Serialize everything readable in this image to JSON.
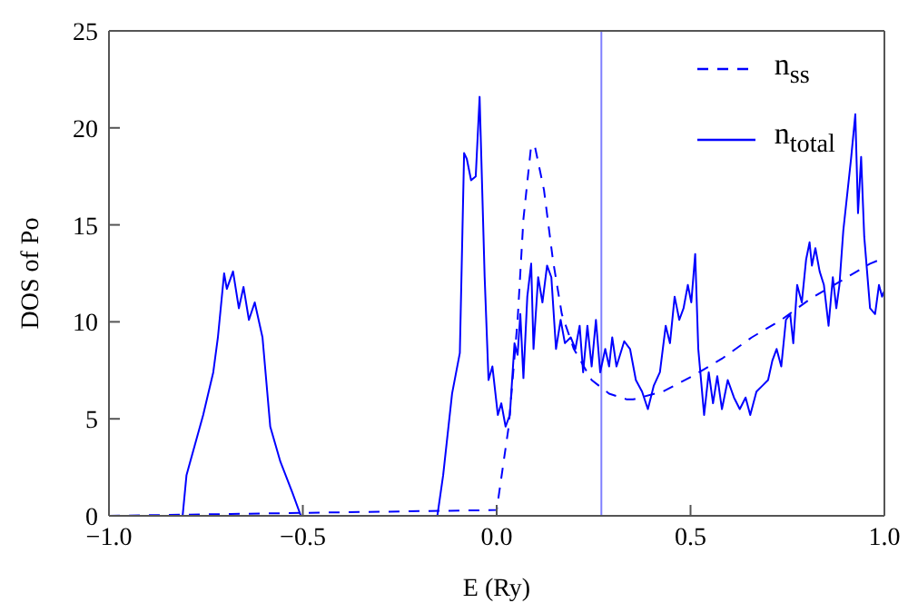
{
  "chart_data": {
    "type": "line",
    "xlabel": "E (Ry)",
    "ylabel": "DOS of Po",
    "xlim": [
      -1,
      1
    ],
    "ylim": [
      0,
      25
    ],
    "xticks": [
      {
        "value": -1,
        "label": "−1.0"
      },
      {
        "value": -0.5,
        "label": "−0.5"
      },
      {
        "value": 0,
        "label": "0.0"
      },
      {
        "value": 0.5,
        "label": "0.5"
      },
      {
        "value": 1,
        "label": "1.0"
      }
    ],
    "yticks": [
      0,
      5,
      10,
      15,
      20,
      25
    ],
    "grid": false,
    "legend": "top right",
    "marker": "none",
    "ref_lines": [
      {
        "axis": "x",
        "value": 0.27,
        "color": "#8080ff"
      }
    ],
    "series": [
      {
        "name": "n$_{ss}$",
        "color": "#0000ff",
        "line_style": "dashed",
        "x": [
          -1,
          0,
          0.031,
          0.054,
          0.069,
          0.089,
          0.099,
          0.122,
          0.145,
          0.168,
          0.199,
          0.245,
          0.29,
          0.336,
          0.352,
          0.428,
          0.505,
          0.581,
          0.658,
          0.734,
          0.81,
          0.887,
          0.963,
          1
        ],
        "values": [
          0,
          0.3,
          4.6,
          10.1,
          15.3,
          19.1,
          19,
          16.8,
          13.2,
          10.4,
          8.6,
          7,
          6.3,
          6,
          6,
          6.4,
          7.2,
          8.1,
          9.2,
          10.1,
          11.2,
          12.1,
          13,
          13.3
        ]
      },
      {
        "name": "n$_{total}$",
        "color": "#0000ff",
        "line_style": "solid",
        "x": [
          -1,
          -0.81,
          -0.8,
          -0.757,
          -0.731,
          -0.719,
          -0.703,
          -0.696,
          -0.68,
          -0.665,
          -0.653,
          -0.639,
          -0.624,
          -0.604,
          -0.584,
          -0.558,
          -0.527,
          -0.505,
          -0.153,
          -0.138,
          -0.115,
          -0.095,
          -0.084,
          -0.077,
          -0.066,
          -0.054,
          -0.044,
          -0.031,
          -0.021,
          -0.011,
          0.003,
          0.012,
          0.023,
          0.034,
          0.046,
          0.054,
          0.061,
          0.069,
          0.079,
          0.089,
          0.095,
          0.107,
          0.118,
          0.13,
          0.141,
          0.153,
          0.165,
          0.176,
          0.191,
          0.203,
          0.214,
          0.223,
          0.234,
          0.245,
          0.256,
          0.267,
          0.28,
          0.29,
          0.298,
          0.309,
          0.329,
          0.344,
          0.359,
          0.375,
          0.39,
          0.405,
          0.421,
          0.436,
          0.447,
          0.459,
          0.471,
          0.482,
          0.493,
          0.502,
          0.512,
          0.52,
          0.535,
          0.547,
          0.558,
          0.569,
          0.581,
          0.596,
          0.612,
          0.627,
          0.642,
          0.654,
          0.67,
          0.685,
          0.7,
          0.711,
          0.722,
          0.734,
          0.746,
          0.757,
          0.765,
          0.775,
          0.787,
          0.798,
          0.807,
          0.813,
          0.822,
          0.833,
          0.844,
          0.856,
          0.867,
          0.876,
          0.884,
          0.894,
          0.914,
          0.925,
          0.932,
          0.94,
          0.948,
          0.963,
          0.976,
          0.986,
          0.994,
          1
        ],
        "values": [
          0,
          0,
          2.1,
          5.2,
          7.4,
          9.2,
          12.5,
          11.7,
          12.6,
          10.7,
          11.8,
          10.1,
          11,
          9.2,
          4.6,
          2.8,
          1.2,
          0,
          0,
          2.1,
          6.3,
          8.4,
          18.7,
          18.4,
          17.3,
          17.5,
          21.6,
          12.3,
          7,
          7.7,
          5.2,
          5.8,
          4.6,
          5.2,
          8.9,
          8.3,
          10.4,
          7.1,
          11.3,
          13,
          8.6,
          12.3,
          11,
          12.9,
          12.3,
          8.6,
          10.1,
          8.9,
          9.2,
          8.6,
          9.8,
          7.4,
          9.8,
          7.7,
          10.1,
          7.4,
          8.6,
          7.7,
          9.2,
          7.7,
          9,
          8.6,
          7,
          6.4,
          5.5,
          6.7,
          7.4,
          9.8,
          8.9,
          11.3,
          10.1,
          10.7,
          11.9,
          11,
          13.5,
          8.6,
          5.2,
          7.4,
          5.8,
          7.2,
          5.5,
          7,
          6.1,
          5.5,
          6.1,
          5.2,
          6.4,
          6.7,
          7,
          8,
          8.6,
          7.7,
          10.1,
          10.4,
          8.9,
          11.9,
          11,
          13.2,
          14.1,
          12.9,
          13.8,
          12.6,
          11.9,
          9.8,
          12.3,
          10.7,
          11.9,
          14.7,
          18.4,
          20.7,
          15.6,
          18.5,
          14.4,
          10.7,
          10.4,
          11.9,
          11.3,
          11.6
        ]
      }
    ]
  }
}
